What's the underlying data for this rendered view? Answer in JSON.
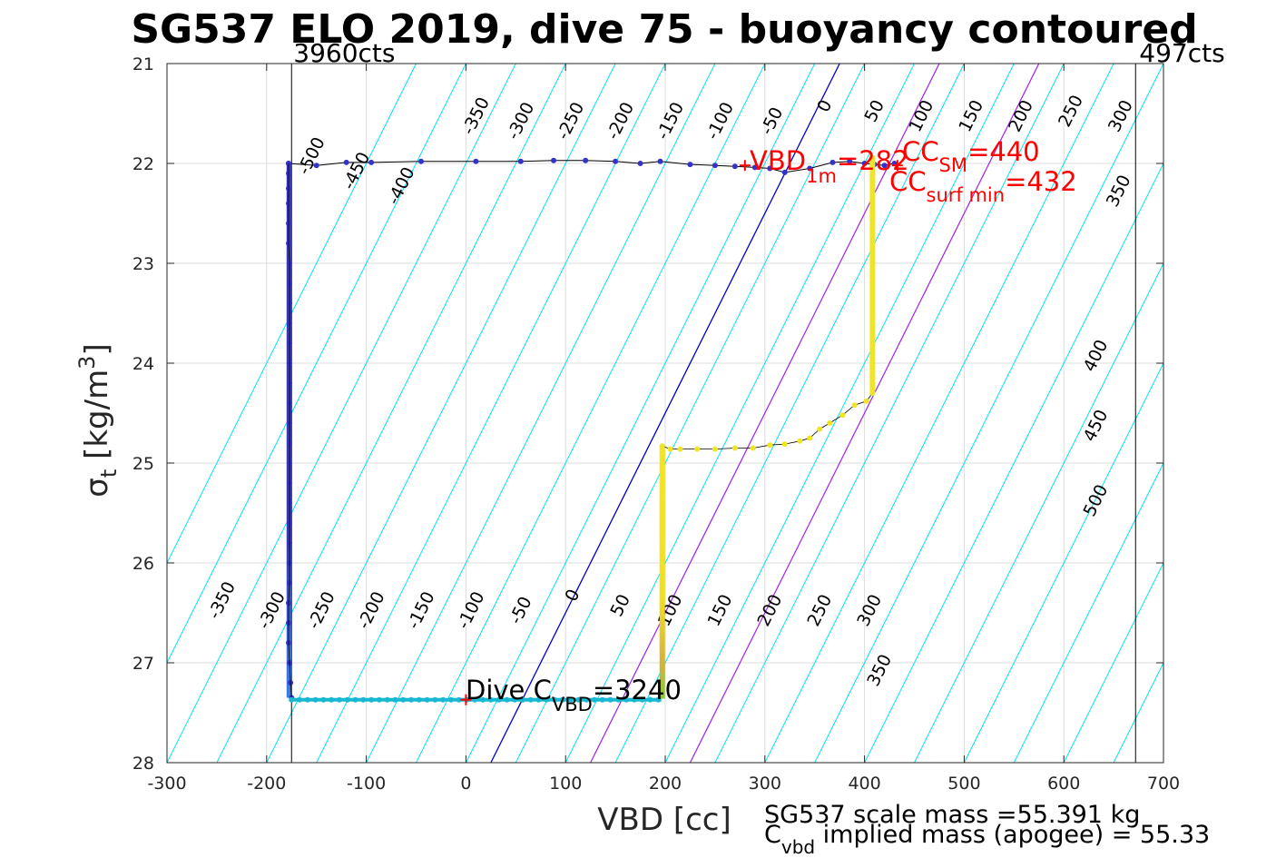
{
  "chart_data": {
    "type": "scatter",
    "title": "SG537 ELO 2019, dive 75 - buoyancy contoured",
    "xlabel": "VBD [cc]",
    "ylabel": "σ",
    "ylabel_sub": "t",
    "ylabel_rest": " [kg/m",
    "ylabel_sup": "3",
    "ylabel_end": "]",
    "xlim": [
      -300,
      700
    ],
    "ylim": [
      21,
      28
    ],
    "y_reversed": true,
    "grid": true,
    "xticks": [
      "-300",
      "-200",
      "-100",
      "0",
      "100",
      "200",
      "300",
      "400",
      "500",
      "600",
      "700"
    ],
    "yticks": [
      "21",
      "22",
      "23",
      "24",
      "25",
      "26",
      "27",
      "28"
    ],
    "contours": {
      "color_main": "#00e5ee",
      "color_zero": "#0000cc",
      "color_magenta": "#a020f0",
      "x_at_sigma28_start": -400,
      "x_at_sigma28_end": 1100,
      "spacing_cc": 50,
      "zero_line_x_at_sigma28": 25,
      "slope_cc_per_kgm3": 50,
      "magenta_lines_x_at_sigma28": [
        125,
        225
      ],
      "labels_top": [
        {
          "text": "-500",
          "x": -150,
          "y": 21.95
        },
        {
          "text": "-450",
          "x": -105,
          "y": 22.1
        },
        {
          "text": "-400",
          "x": -60,
          "y": 22.25
        },
        {
          "text": "-350",
          "x": 15,
          "y": 21.55
        },
        {
          "text": "-300",
          "x": 60,
          "y": 21.6
        },
        {
          "text": "-250",
          "x": 110,
          "y": 21.6
        },
        {
          "text": "-200",
          "x": 160,
          "y": 21.6
        },
        {
          "text": "-150",
          "x": 210,
          "y": 21.6
        },
        {
          "text": "-100",
          "x": 260,
          "y": 21.6
        },
        {
          "text": "-50",
          "x": 312,
          "y": 21.6
        },
        {
          "text": "0",
          "x": 365,
          "y": 21.45
        },
        {
          "text": "50",
          "x": 415,
          "y": 21.5
        },
        {
          "text": "100",
          "x": 462,
          "y": 21.55
        },
        {
          "text": "150",
          "x": 512,
          "y": 21.55
        },
        {
          "text": "200",
          "x": 562,
          "y": 21.55
        },
        {
          "text": "250",
          "x": 612,
          "y": 21.5
        },
        {
          "text": "300",
          "x": 662,
          "y": 21.55
        },
        {
          "text": "350",
          "x": 660,
          "y": 22.3
        },
        {
          "text": "400",
          "x": 637,
          "y": 23.95
        },
        {
          "text": "450",
          "x": 637,
          "y": 24.65
        },
        {
          "text": "500",
          "x": 637,
          "y": 25.4
        }
      ],
      "labels_bottom": [
        {
          "text": "-350",
          "x": -240,
          "y": 26.4
        },
        {
          "text": "-300",
          "x": -190,
          "y": 26.5
        },
        {
          "text": "-250",
          "x": -140,
          "y": 26.5
        },
        {
          "text": "-200",
          "x": -90,
          "y": 26.5
        },
        {
          "text": "-150",
          "x": -40,
          "y": 26.5
        },
        {
          "text": "-100",
          "x": 10,
          "y": 26.5
        },
        {
          "text": "-50",
          "x": 60,
          "y": 26.5
        },
        {
          "text": "0",
          "x": 112,
          "y": 26.35
        },
        {
          "text": "50",
          "x": 160,
          "y": 26.45
        },
        {
          "text": "100",
          "x": 210,
          "y": 26.5
        },
        {
          "text": "150",
          "x": 260,
          "y": 26.5
        },
        {
          "text": "200",
          "x": 310,
          "y": 26.5
        },
        {
          "text": "250",
          "x": 360,
          "y": 26.5
        },
        {
          "text": "300",
          "x": 410,
          "y": 26.5
        },
        {
          "text": "350",
          "x": 420,
          "y": 27.1
        }
      ]
    },
    "vertical_lines": [
      {
        "x": -175,
        "label": "3960cts"
      },
      {
        "x": 672,
        "label": "497cts"
      }
    ],
    "series": [
      {
        "marker_color": "#3333cc",
        "line_color": "#000000",
        "points": [
          [
            -178,
            22.0
          ],
          [
            -178,
            22.1
          ],
          [
            -178,
            22.25
          ],
          [
            -178,
            22.4
          ],
          [
            -178,
            22.6
          ],
          [
            -178,
            22.8
          ],
          [
            -177,
            23.0
          ],
          [
            -177,
            23.2
          ],
          [
            -177,
            23.4
          ],
          [
            -177,
            23.6
          ],
          [
            -177,
            23.8
          ],
          [
            -177,
            24.0
          ],
          [
            -177,
            24.2
          ],
          [
            -177,
            24.4
          ],
          [
            -177,
            24.6
          ],
          [
            -177,
            24.8
          ],
          [
            -177,
            25.0
          ],
          [
            -177,
            25.2
          ],
          [
            -177,
            25.4
          ],
          [
            -177,
            25.6
          ],
          [
            -177,
            25.8
          ],
          [
            -177,
            26.0
          ],
          [
            -177,
            26.2
          ],
          [
            -178,
            26.4
          ],
          [
            -178,
            26.6
          ],
          [
            -178,
            26.8
          ],
          [
            -177,
            27.0
          ],
          [
            -176,
            27.2
          ],
          [
            -175,
            27.35
          ]
        ],
        "upper_track": [
          [
            -178,
            22.0
          ],
          [
            -150,
            22.02
          ],
          [
            -120,
            21.99
          ],
          [
            -95,
            21.99
          ],
          [
            -45,
            21.98
          ],
          [
            10,
            21.98
          ],
          [
            55,
            21.98
          ],
          [
            88,
            21.97
          ],
          [
            120,
            21.97
          ],
          [
            150,
            21.98
          ],
          [
            175,
            22.0
          ],
          [
            195,
            21.98
          ],
          [
            225,
            22.01
          ],
          [
            250,
            22.02
          ],
          [
            270,
            22.03
          ],
          [
            290,
            22.04
          ],
          [
            305,
            22.05
          ],
          [
            320,
            22.09
          ],
          [
            345,
            22.05
          ],
          [
            368,
            21.99
          ],
          [
            385,
            21.98
          ],
          [
            400,
            22.0
          ],
          [
            410,
            22.01
          ],
          [
            420,
            22.02
          ],
          [
            430,
            22.0
          ]
        ]
      },
      {
        "marker_color": "#19b8d2",
        "line_color": "#000000",
        "points": [
          [
            -175,
            27.37
          ],
          [
            -150,
            27.37
          ],
          [
            -120,
            27.37
          ],
          [
            -90,
            27.37
          ],
          [
            -60,
            27.37
          ],
          [
            -30,
            27.37
          ],
          [
            0,
            27.37
          ],
          [
            30,
            27.37
          ],
          [
            60,
            27.37
          ],
          [
            90,
            27.37
          ],
          [
            120,
            27.37
          ],
          [
            150,
            27.37
          ],
          [
            180,
            27.37
          ],
          [
            196,
            27.36
          ]
        ]
      },
      {
        "marker_color": "#f0e524",
        "line_color": "#000000",
        "points": [
          [
            197,
            24.83
          ],
          [
            205,
            24.86
          ],
          [
            215,
            24.86
          ],
          [
            232,
            24.86
          ],
          [
            250,
            24.86
          ],
          [
            270,
            24.85
          ],
          [
            288,
            24.85
          ],
          [
            305,
            24.82
          ],
          [
            320,
            24.81
          ],
          [
            335,
            24.78
          ],
          [
            345,
            24.75
          ],
          [
            355,
            24.66
          ],
          [
            365,
            24.6
          ],
          [
            378,
            24.52
          ],
          [
            390,
            24.42
          ],
          [
            402,
            24.38
          ],
          [
            408,
            24.3
          ],
          [
            408,
            23.5
          ],
          [
            408,
            23.0
          ],
          [
            408,
            22.5
          ],
          [
            408,
            22.0
          ]
        ],
        "vertical_run": {
          "x": 197,
          "from": 24.83,
          "to": 27.36
        }
      }
    ],
    "markers": [
      {
        "x": 280,
        "y": 22.02,
        "color": "#ff0000"
      },
      {
        "x": 0,
        "y": 27.37,
        "color": "#ff0000"
      },
      {
        "x": 433,
        "y": 22.02,
        "color": "#ff0000"
      }
    ],
    "annotations": {
      "vbd_label": "VBD",
      "vbd_sub": "1m",
      "vbd_value": "=282",
      "ccsm_label": "CC",
      "ccsm_sub": "SM",
      "ccsm_value": "=440",
      "ccsurf_label": "CC",
      "ccsurf_sub": "surf min",
      "ccsurf_value": "=432",
      "dive_label": "Dive C",
      "dive_sub": "VBD",
      "dive_value": "=3240"
    },
    "footer": {
      "scale_mass": "SG537 scale mass =55.391 kg",
      "cvbd_label": "C",
      "cvbd_sub": "vbd",
      "cvbd_rest": " implied mass (apogee) = 55.33"
    }
  }
}
